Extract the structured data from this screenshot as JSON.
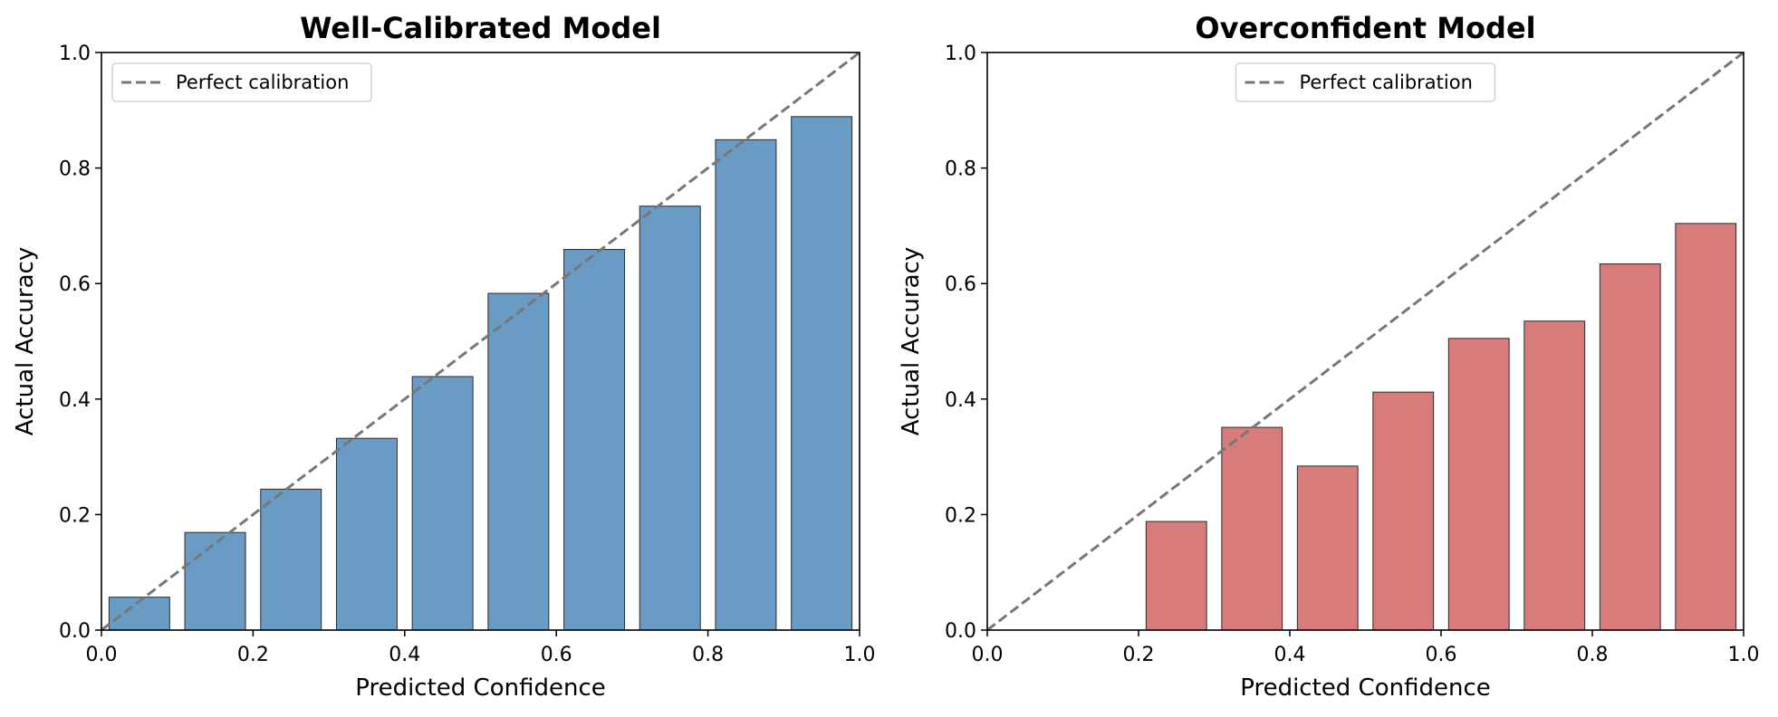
{
  "chart_data": [
    {
      "type": "bar",
      "title": "Well-Calibrated Model",
      "xlabel": "Predicted Confidence",
      "ylabel": "Actual Accuracy",
      "xlim": [
        0,
        1
      ],
      "ylim": [
        0,
        1
      ],
      "xticks": [
        "0.0",
        "0.2",
        "0.4",
        "0.6",
        "0.8",
        "1.0"
      ],
      "yticks": [
        "0.0",
        "0.2",
        "0.4",
        "0.6",
        "0.8",
        "1.0"
      ],
      "bar_color": "#6a9bc5",
      "bin_width": 0.1,
      "bins": [
        {
          "center": 0.05,
          "value": 0.057
        },
        {
          "center": 0.15,
          "value": 0.169
        },
        {
          "center": 0.25,
          "value": 0.244
        },
        {
          "center": 0.35,
          "value": 0.332
        },
        {
          "center": 0.45,
          "value": 0.439
        },
        {
          "center": 0.55,
          "value": 0.583
        },
        {
          "center": 0.65,
          "value": 0.659
        },
        {
          "center": 0.75,
          "value": 0.734
        },
        {
          "center": 0.85,
          "value": 0.849
        },
        {
          "center": 0.95,
          "value": 0.889
        }
      ],
      "reference_line": {
        "label": "Perfect calibration",
        "color": "#777777",
        "points": [
          [
            0,
            0
          ],
          [
            1,
            1
          ]
        ]
      },
      "legend": {
        "placement": "upper left",
        "entries": [
          "Perfect calibration"
        ]
      },
      "grid": false
    },
    {
      "type": "bar",
      "title": "Overconfident Model",
      "xlabel": "Predicted Confidence",
      "ylabel": "Actual Accuracy",
      "xlim": [
        0,
        1
      ],
      "ylim": [
        0,
        1
      ],
      "xticks": [
        "0.0",
        "0.2",
        "0.4",
        "0.6",
        "0.8",
        "1.0"
      ],
      "yticks": [
        "0.0",
        "0.2",
        "0.4",
        "0.6",
        "0.8",
        "1.0"
      ],
      "bar_color": "#d77b7b",
      "bin_width": 0.1,
      "bins": [
        {
          "center": 0.25,
          "value": 0.188
        },
        {
          "center": 0.35,
          "value": 0.351
        },
        {
          "center": 0.45,
          "value": 0.284
        },
        {
          "center": 0.55,
          "value": 0.412
        },
        {
          "center": 0.65,
          "value": 0.505
        },
        {
          "center": 0.75,
          "value": 0.535
        },
        {
          "center": 0.85,
          "value": 0.634
        },
        {
          "center": 0.95,
          "value": 0.704
        }
      ],
      "reference_line": {
        "label": "Perfect calibration",
        "color": "#777777",
        "points": [
          [
            0,
            0
          ],
          [
            1,
            1
          ]
        ]
      },
      "legend": {
        "placement": "upper center",
        "entries": [
          "Perfect calibration"
        ]
      },
      "grid": false
    }
  ]
}
